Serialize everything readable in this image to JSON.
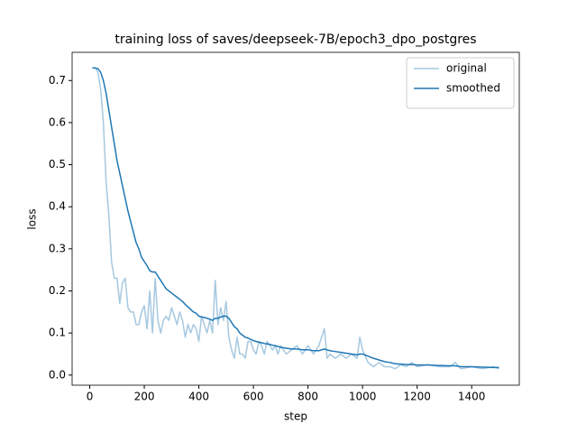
{
  "chart_data": {
    "type": "line",
    "title": "training loss of saves/deepseek-7B/epoch3_dpo_postgres",
    "x_label": "step",
    "y_label": "loss",
    "x": [
      10,
      20,
      30,
      40,
      50,
      60,
      70,
      80,
      90,
      100,
      110,
      120,
      130,
      140,
      150,
      160,
      170,
      180,
      190,
      200,
      210,
      220,
      230,
      240,
      250,
      260,
      270,
      280,
      290,
      300,
      310,
      320,
      330,
      340,
      350,
      360,
      370,
      380,
      390,
      400,
      410,
      420,
      430,
      440,
      450,
      460,
      470,
      480,
      490,
      500,
      510,
      520,
      530,
      540,
      550,
      560,
      570,
      580,
      590,
      600,
      610,
      620,
      630,
      640,
      650,
      660,
      670,
      680,
      690,
      700,
      720,
      740,
      760,
      780,
      800,
      820,
      840,
      860,
      870,
      880,
      900,
      920,
      940,
      960,
      980,
      990,
      1000,
      1020,
      1040,
      1060,
      1080,
      1100,
      1120,
      1140,
      1160,
      1180,
      1200,
      1240,
      1280,
      1320,
      1340,
      1360,
      1400,
      1440,
      1480,
      1500
    ],
    "series": [
      {
        "name": "original",
        "color": "#a6c8e0",
        "values": [
          0.73,
          0.73,
          0.72,
          0.68,
          0.6,
          0.46,
          0.38,
          0.27,
          0.23,
          0.23,
          0.17,
          0.22,
          0.23,
          0.16,
          0.15,
          0.15,
          0.12,
          0.12,
          0.15,
          0.165,
          0.11,
          0.2,
          0.1,
          0.23,
          0.13,
          0.1,
          0.13,
          0.14,
          0.13,
          0.16,
          0.14,
          0.12,
          0.15,
          0.13,
          0.09,
          0.12,
          0.1,
          0.12,
          0.11,
          0.08,
          0.14,
          0.12,
          0.1,
          0.13,
          0.1,
          0.225,
          0.12,
          0.16,
          0.13,
          0.175,
          0.09,
          0.06,
          0.04,
          0.09,
          0.05,
          0.05,
          0.04,
          0.08,
          0.08,
          0.06,
          0.05,
          0.08,
          0.07,
          0.05,
          0.08,
          0.07,
          0.06,
          0.07,
          0.05,
          0.07,
          0.05,
          0.06,
          0.07,
          0.05,
          0.07,
          0.05,
          0.07,
          0.11,
          0.04,
          0.05,
          0.04,
          0.05,
          0.04,
          0.05,
          0.04,
          0.09,
          0.06,
          0.03,
          0.02,
          0.03,
          0.02,
          0.02,
          0.015,
          0.025,
          0.02,
          0.03,
          0.02,
          0.025,
          0.02,
          0.02,
          0.03,
          0.015,
          0.02,
          0.015,
          0.02,
          0.015
        ]
      },
      {
        "name": "smoothed",
        "color": "#1f77b4",
        "values": [
          0.73,
          0.73,
          0.728,
          0.72,
          0.7,
          0.67,
          0.63,
          0.59,
          0.55,
          0.51,
          0.48,
          0.45,
          0.42,
          0.39,
          0.365,
          0.34,
          0.315,
          0.3,
          0.28,
          0.27,
          0.26,
          0.248,
          0.245,
          0.245,
          0.235,
          0.225,
          0.215,
          0.205,
          0.2,
          0.195,
          0.19,
          0.185,
          0.18,
          0.175,
          0.168,
          0.162,
          0.156,
          0.15,
          0.147,
          0.14,
          0.138,
          0.137,
          0.135,
          0.133,
          0.13,
          0.135,
          0.135,
          0.138,
          0.14,
          0.14,
          0.135,
          0.125,
          0.115,
          0.11,
          0.1,
          0.095,
          0.09,
          0.088,
          0.085,
          0.082,
          0.08,
          0.078,
          0.077,
          0.075,
          0.074,
          0.073,
          0.071,
          0.07,
          0.068,
          0.066,
          0.064,
          0.062,
          0.062,
          0.06,
          0.06,
          0.058,
          0.058,
          0.062,
          0.06,
          0.058,
          0.056,
          0.054,
          0.052,
          0.05,
          0.048,
          0.05,
          0.05,
          0.045,
          0.04,
          0.036,
          0.032,
          0.03,
          0.027,
          0.026,
          0.025,
          0.025,
          0.024,
          0.024,
          0.023,
          0.022,
          0.022,
          0.02,
          0.02,
          0.019,
          0.018,
          0.018
        ]
      }
    ],
    "xlim": [
      -64.5,
      1574.5
    ],
    "ylim": [
      -0.024,
      0.767
    ],
    "xticks": [
      0,
      200,
      400,
      600,
      800,
      1000,
      1200,
      1400
    ],
    "yticks": [
      {
        "value": 0,
        "label": "0.0"
      },
      0.1,
      0.2,
      0.3,
      0.4,
      0.5,
      0.6,
      0.7
    ],
    "legend": "upper right",
    "grid": false
  }
}
